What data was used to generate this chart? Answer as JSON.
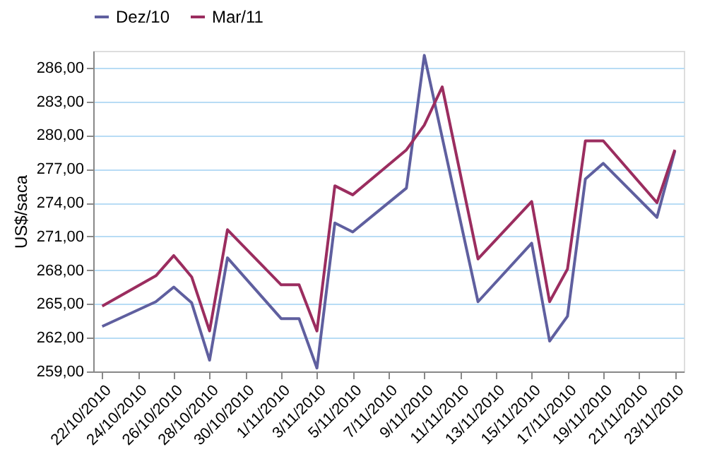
{
  "chart_data": {
    "type": "line",
    "ylabel": "US$/saca",
    "series": [
      {
        "name": "Dez/10",
        "color": "#5f5f9f",
        "x": [
          "2010-10-22",
          "2010-10-25",
          "2010-10-26",
          "2010-10-27",
          "2010-10-28",
          "2010-10-29",
          "2010-11-01",
          "2010-11-02",
          "2010-11-03",
          "2010-11-04",
          "2010-11-05",
          "2010-11-08",
          "2010-11-09",
          "2010-11-12",
          "2010-11-15",
          "2010-11-16",
          "2010-11-17",
          "2010-11-18",
          "2010-11-19",
          "2010-11-22",
          "2010-11-23"
        ],
        "values": [
          263.0,
          265.2,
          266.5,
          265.1,
          260.0,
          269.1,
          263.7,
          263.7,
          259.3,
          272.2,
          271.4,
          275.3,
          287.1,
          265.2,
          270.4,
          261.7,
          263.9,
          276.1,
          277.5,
          272.7,
          278.6
        ]
      },
      {
        "name": "Mar/11",
        "color": "#9b2d5f",
        "x": [
          "2010-10-22",
          "2010-10-25",
          "2010-10-26",
          "2010-10-27",
          "2010-10-28",
          "2010-10-29",
          "2010-11-01",
          "2010-11-02",
          "2010-11-03",
          "2010-11-04",
          "2010-11-05",
          "2010-11-08",
          "2010-11-09",
          "2010-11-10",
          "2010-11-12",
          "2010-11-15",
          "2010-11-16",
          "2010-11-17",
          "2010-11-18",
          "2010-11-19",
          "2010-11-22",
          "2010-11-23"
        ],
        "values": [
          264.8,
          267.5,
          269.3,
          267.4,
          262.6,
          271.6,
          266.7,
          266.7,
          262.6,
          275.5,
          274.7,
          278.7,
          280.9,
          284.3,
          269.0,
          274.1,
          265.2,
          268.1,
          279.5,
          279.5,
          274.0,
          278.7
        ]
      }
    ],
    "xlim": [
      "2010-10-21T12:00",
      "2010-11-23T12:00"
    ],
    "xticks": [
      {
        "value": "2010-10-22",
        "label": "22/10/2010"
      },
      {
        "value": "2010-10-24",
        "label": "24/10/2010"
      },
      {
        "value": "2010-10-26",
        "label": "26/10/2010"
      },
      {
        "value": "2010-10-28",
        "label": "28/10/2010"
      },
      {
        "value": "2010-10-30",
        "label": "30/10/2010"
      },
      {
        "value": "2010-11-01",
        "label": "1/11/2010"
      },
      {
        "value": "2010-11-03",
        "label": "3/11/2010"
      },
      {
        "value": "2010-11-05",
        "label": "5/11/2010"
      },
      {
        "value": "2010-11-07",
        "label": "7/11/2010"
      },
      {
        "value": "2010-11-09",
        "label": "9/11/2010"
      },
      {
        "value": "2010-11-11",
        "label": "11/11/2010"
      },
      {
        "value": "2010-11-13",
        "label": "13/11/2010"
      },
      {
        "value": "2010-11-15",
        "label": "15/11/2010"
      },
      {
        "value": "2010-11-17",
        "label": "17/11/2010"
      },
      {
        "value": "2010-11-19",
        "label": "19/11/2010"
      },
      {
        "value": "2010-11-21",
        "label": "21/11/2010"
      },
      {
        "value": "2010-11-23",
        "label": "23/11/2010"
      }
    ],
    "ylim": [
      259,
      287.5
    ],
    "yticks": [
      {
        "value": 259,
        "label": "259,00"
      },
      {
        "value": 262,
        "label": "262,00"
      },
      {
        "value": 265,
        "label": "265,00"
      },
      {
        "value": 268,
        "label": "268,00"
      },
      {
        "value": 271,
        "label": "271,00"
      },
      {
        "value": 274,
        "label": "274,00"
      },
      {
        "value": 277,
        "label": "277,00"
      },
      {
        "value": 280,
        "label": "280,00"
      },
      {
        "value": 283,
        "label": "283,00"
      },
      {
        "value": 286,
        "label": "286,00"
      }
    ],
    "grid": "y",
    "legend": "top",
    "marker": "none",
    "line_style": "solid"
  }
}
